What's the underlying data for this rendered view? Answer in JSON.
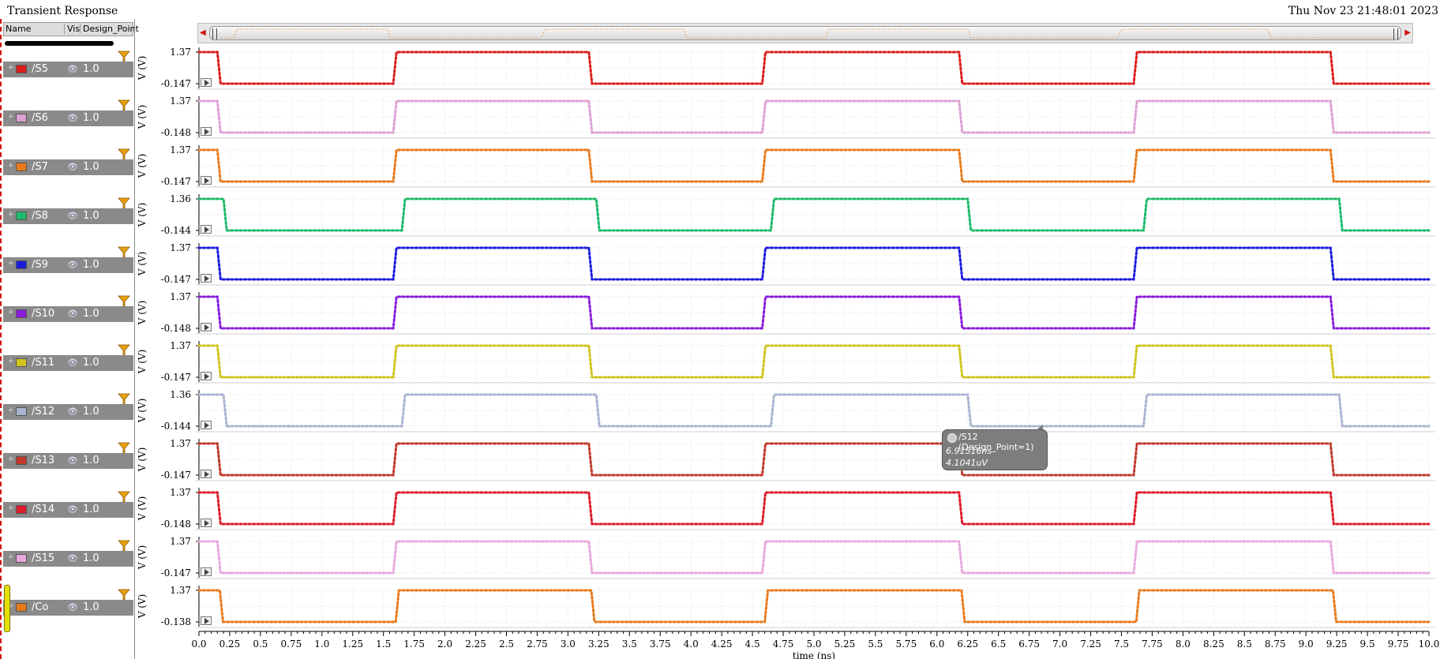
{
  "window": {
    "title": "Transient Response",
    "datetime": "Thu Nov 23 21:48:01 2023"
  },
  "columns": {
    "name": "Name",
    "vis": "Vis",
    "design_point": "Design_Point"
  },
  "signals": [
    {
      "name": "/S5",
      "dp": "1.0",
      "color": "#dd1c1c",
      "ymax": "1.37",
      "ymin": "-0.147",
      "phase": 0
    },
    {
      "name": "/S6",
      "dp": "1.0",
      "color": "#dda0d5",
      "ymax": "1.37",
      "ymin": "-0.148",
      "phase": 0
    },
    {
      "name": "/S7",
      "dp": "1.0",
      "color": "#e87a1c",
      "ymax": "1.37",
      "ymin": "-0.147",
      "phase": 0
    },
    {
      "name": "/S8",
      "dp": "1.0",
      "color": "#1cba6a",
      "ymax": "1.36",
      "ymin": "-0.144",
      "phase": 1
    },
    {
      "name": "/S9",
      "dp": "1.0",
      "color": "#1c1cdd",
      "ymax": "1.37",
      "ymin": "-0.147",
      "phase": 0
    },
    {
      "name": "/S10",
      "dp": "1.0",
      "color": "#8a1cdd",
      "ymax": "1.37",
      "ymin": "-0.148",
      "phase": 0
    },
    {
      "name": "/S11",
      "dp": "1.0",
      "color": "#cfc41c",
      "ymax": "1.37",
      "ymin": "-0.147",
      "phase": 0
    },
    {
      "name": "/S12",
      "dp": "1.0",
      "color": "#a8b4d0",
      "ymax": "1.36",
      "ymin": "-0.144",
      "phase": 1
    },
    {
      "name": "/S13",
      "dp": "1.0",
      "color": "#c0392b",
      "ymax": "1.37",
      "ymin": "-0.147",
      "phase": 0
    },
    {
      "name": "/S14",
      "dp": "1.0",
      "color": "#dd1c2a",
      "ymax": "1.37",
      "ymin": "-0.148",
      "phase": 0
    },
    {
      "name": "/S15",
      "dp": "1.0",
      "color": "#e8a8dd",
      "ymax": "1.37",
      "ymin": "-0.147",
      "phase": 0
    },
    {
      "name": "/Co",
      "dp": "1.0",
      "color": "#e87a1c",
      "ymax": "1.37",
      "ymin": "-0.138",
      "phase": 2
    }
  ],
  "axis": {
    "ylabel": "V (V)",
    "xlabel": "time (ns)",
    "xmin": 0,
    "xmax": 10,
    "ticks": [
      "0.0",
      "0.25",
      "0.5",
      "0.75",
      "1.0",
      "1.25",
      "1.5",
      "1.75",
      "2.0",
      "2.25",
      "2.5",
      "2.75",
      "3.0",
      "3.25",
      "3.5",
      "3.75",
      "4.0",
      "4.25",
      "4.5",
      "4.75",
      "5.0",
      "5.25",
      "5.5",
      "5.75",
      "6.0",
      "6.25",
      "6.5",
      "6.75",
      "7.0",
      "7.25",
      "7.5",
      "7.75",
      "8.0",
      "8.25",
      "8.5",
      "8.75",
      "9.0",
      "9.25",
      "9.5",
      "9.75",
      "10.0"
    ]
  },
  "chart_data": {
    "type": "line",
    "xlabel": "time (ns)",
    "ylabel": "V (V)",
    "xlim": [
      0,
      10
    ],
    "transitions_ns": {
      "default": [
        0.15,
        1.58,
        3.17,
        4.58,
        6.18,
        7.6,
        9.2
      ],
      "late": [
        0.2,
        1.65,
        3.23,
        4.65,
        6.25,
        7.68,
        9.27
      ],
      "co": [
        0.17,
        1.6,
        3.19,
        4.6,
        6.2,
        7.62,
        9.22
      ]
    },
    "initial_state": "high",
    "series": [
      {
        "name": "/S5",
        "ylim": [
          -0.147,
          1.37
        ],
        "transitions": "default"
      },
      {
        "name": "/S6",
        "ylim": [
          -0.148,
          1.37
        ],
        "transitions": "default"
      },
      {
        "name": "/S7",
        "ylim": [
          -0.147,
          1.37
        ],
        "transitions": "default"
      },
      {
        "name": "/S8",
        "ylim": [
          -0.144,
          1.36
        ],
        "transitions": "late"
      },
      {
        "name": "/S9",
        "ylim": [
          -0.147,
          1.37
        ],
        "transitions": "default"
      },
      {
        "name": "/S10",
        "ylim": [
          -0.148,
          1.37
        ],
        "transitions": "default"
      },
      {
        "name": "/S11",
        "ylim": [
          -0.147,
          1.37
        ],
        "transitions": "default"
      },
      {
        "name": "/S12",
        "ylim": [
          -0.144,
          1.36
        ],
        "transitions": "late"
      },
      {
        "name": "/S13",
        "ylim": [
          -0.147,
          1.37
        ],
        "transitions": "default"
      },
      {
        "name": "/S14",
        "ylim": [
          -0.148,
          1.37
        ],
        "transitions": "default"
      },
      {
        "name": "/S15",
        "ylim": [
          -0.147,
          1.37
        ],
        "transitions": "default"
      },
      {
        "name": "/Co",
        "ylim": [
          -0.138,
          1.37
        ],
        "transitions": "co"
      }
    ]
  },
  "tooltip": {
    "title": "/S12 (Design_Point=1)",
    "time": "6.91516ns",
    "value": "4.1041uV"
  }
}
